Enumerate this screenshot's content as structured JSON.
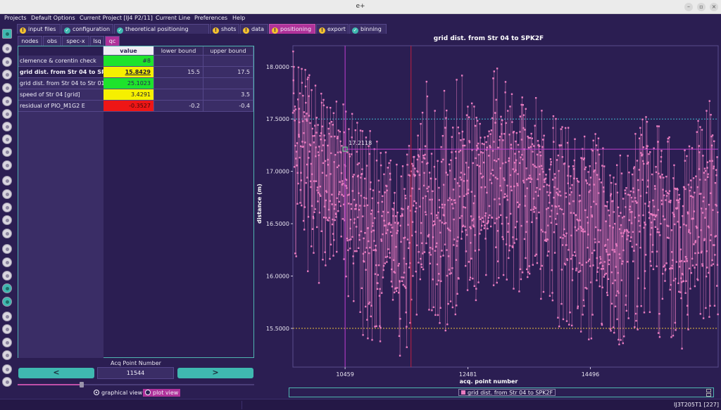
{
  "window": {
    "title": "e+"
  },
  "menu": [
    "Projects",
    "Default Options",
    "Current Project [IJ4 P2/11]",
    "Current Line",
    "Preferences",
    "Help"
  ],
  "tabs": [
    {
      "label": "input files",
      "status": "warn"
    },
    {
      "label": "configuration",
      "status": "ok"
    },
    {
      "label": "theoretical positioning",
      "status": "ok"
    },
    {
      "label": "shots",
      "status": "warn"
    },
    {
      "label": "data",
      "status": "warn"
    },
    {
      "label": "positioning",
      "status": "warn",
      "active": true
    },
    {
      "label": "export",
      "status": "warn"
    },
    {
      "label": "binning",
      "status": "ok"
    }
  ],
  "subtabs": [
    {
      "label": "nodes"
    },
    {
      "label": "obs"
    },
    {
      "label": "spec-x"
    },
    {
      "label": "lsq"
    },
    {
      "label": "qc",
      "active": true
    }
  ],
  "qc_table": {
    "headers": {
      "value": "value",
      "lower": "lower bound",
      "upper": "upper bound"
    },
    "rows": [
      {
        "label": "clemence & corentin check",
        "value": "#8",
        "value_color": "green",
        "lower": "",
        "upper": ""
      },
      {
        "label": "grid dist. from Str 04 to SPK2F",
        "value": "15.8429",
        "value_color": "yellow",
        "lower": "15.5",
        "upper": "17.5",
        "selected": true
      },
      {
        "label": "grid dist. from Str 04 to Str 01",
        "value": "25.1023",
        "value_color": "green",
        "lower": "",
        "upper": ""
      },
      {
        "label": "speed of Str 04 [grid]",
        "value": "3.4291",
        "value_color": "yellow",
        "lower": "",
        "upper": "3.5"
      },
      {
        "label": "residual of PIO_M1G2 E",
        "value": "-0.3527",
        "value_color": "red",
        "lower": "-0.2",
        "upper": "-0.4"
      }
    ]
  },
  "acq": {
    "label": "Acq Point Number",
    "value": "11544",
    "prev_icon": "<",
    "next_icon": ">",
    "slider_fraction": 0.27
  },
  "views": {
    "graphical": "graphical view",
    "plot": "plot view"
  },
  "legend": {
    "label": "grid dist. from Str 04 to SPK2F",
    "color": "#e87cc0"
  },
  "status": {
    "text": "IJ3T205T1 [227]"
  },
  "colors": {
    "accent": "#b0329a",
    "teal": "#3fb8b0",
    "background": "#2b1e52",
    "series": "#e87cc0",
    "lower_line": "#f0c040",
    "upper_line": "#3fb8d0"
  },
  "chart_data": {
    "type": "scatter",
    "title": "grid dist. from Str 04 to SPK2F",
    "xlabel": "acq. point number",
    "ylabel": "distance (m)",
    "xlim": [
      9600,
      16600
    ],
    "ylim": [
      15.13,
      18.2
    ],
    "xticks": [
      10459,
      12481,
      14496
    ],
    "yticks": [
      15.5,
      16.0,
      16.5,
      17.0,
      17.5,
      18.0
    ],
    "ytick_labels": [
      "15.5000",
      "16.0000",
      "16.5000",
      "17.0000",
      "17.5000",
      "18.0000"
    ],
    "lower_bound": 15.5,
    "upper_bound": 17.5,
    "cursor_x": 10459,
    "cursor_y": 17.2118,
    "cursor_label": "17.2118",
    "marker_x": 11544,
    "series": [
      {
        "name": "grid dist. from Str 04 to SPK2F",
        "x_start": 9600,
        "x_step": 200,
        "mean": [
          17.3,
          17.2,
          16.85,
          17.0,
          17.0,
          16.7,
          16.5,
          16.35,
          16.4,
          16.3,
          16.55,
          16.75,
          16.5,
          16.7,
          16.85,
          16.75,
          16.95,
          17.0,
          16.8,
          16.95,
          16.9,
          16.75,
          16.6,
          16.55,
          16.6,
          16.45,
          16.4,
          16.35,
          16.55,
          16.65,
          16.55,
          16.45,
          16.3,
          16.45,
          16.55,
          16.65
        ],
        "low": [
          16.0,
          16.1,
          15.85,
          15.95,
          16.05,
          15.55,
          15.4,
          15.2,
          15.15,
          15.2,
          15.4,
          15.7,
          15.3,
          15.5,
          15.8,
          15.65,
          15.9,
          15.9,
          15.7,
          15.85,
          15.8,
          15.65,
          15.5,
          15.45,
          15.4,
          15.35,
          15.4,
          15.3,
          15.4,
          15.45,
          15.3,
          15.35,
          15.3,
          15.45,
          15.5,
          15.6
        ],
        "high": [
          18.15,
          18.1,
          17.8,
          17.65,
          17.7,
          17.6,
          17.5,
          17.3,
          17.2,
          17.1,
          17.45,
          17.9,
          17.6,
          18.05,
          17.95,
          17.8,
          17.95,
          18.05,
          17.8,
          17.75,
          17.75,
          17.6,
          17.45,
          17.4,
          17.45,
          17.35,
          17.3,
          17.25,
          17.45,
          17.55,
          17.45,
          17.35,
          17.25,
          17.45,
          17.65,
          17.75
        ]
      }
    ]
  }
}
